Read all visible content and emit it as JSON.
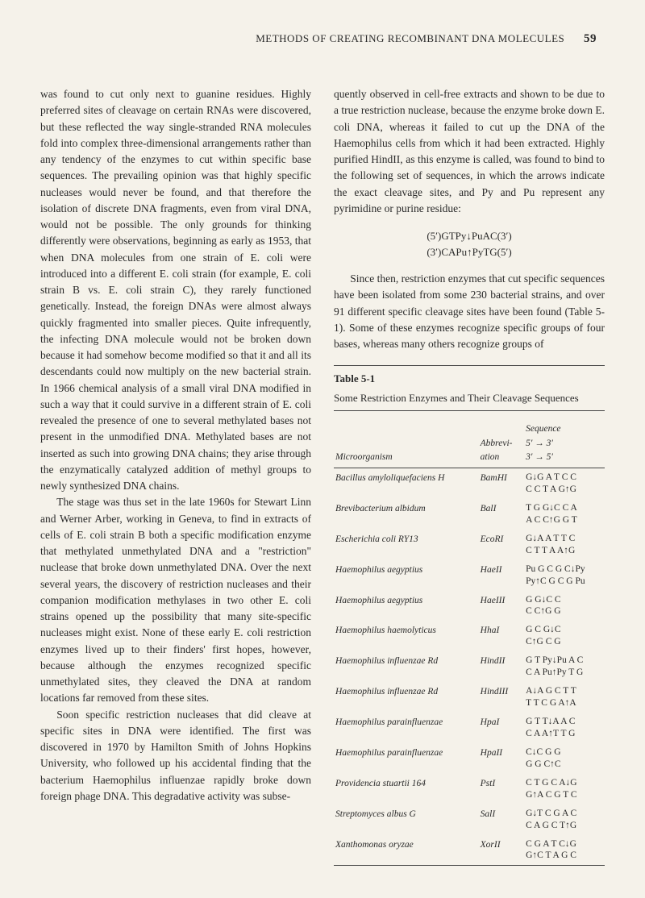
{
  "header": {
    "title": "METHODS OF CREATING RECOMBINANT DNA MOLECULES",
    "page": "59"
  },
  "left": {
    "p1": "was found to cut only next to guanine residues. Highly preferred sites of cleavage on certain RNAs were discovered, but these reflected the way single-stranded RNA molecules fold into complex three-dimensional arrangements rather than any tendency of the enzymes to cut within specific base sequences. The prevailing opinion was that highly specific nucleases would never be found, and that therefore the isolation of discrete DNA fragments, even from viral DNA, would not be possible. The only grounds for thinking differently were observations, beginning as early as 1953, that when DNA molecules from one strain of E. coli were introduced into a different E. coli strain (for example, E. coli strain B vs. E. coli strain C), they rarely functioned genetically. Instead, the foreign DNAs were almost always quickly fragmented into smaller pieces. Quite infrequently, the infecting DNA molecule would not be broken down because it had somehow become modified so that it and all its descendants could now multiply on the new bacterial strain. In 1966 chemical analysis of a small viral DNA modified in such a way that it could survive in a different strain of E. coli revealed the presence of one to several methylated bases not present in the unmodified DNA. Methylated bases are not inserted as such into growing DNA chains; they arise through the enzymatically catalyzed addition of methyl groups to newly synthesized DNA chains.",
    "p2": "The stage was thus set in the late 1960s for Stewart Linn and Werner Arber, working in Geneva, to find in extracts of cells of E. coli strain B both a specific modification enzyme that methylated unmethylated DNA and a \"restriction\" nuclease that broke down unmethylated DNA. Over the next several years, the discovery of restriction nucleases and their companion modification methylases in two other E. coli strains opened up the possibility that many site-specific nucleases might exist. None of these early E. coli restriction enzymes lived up to their finders' first hopes, however, because although the enzymes recognized specific unmethylated sites, they cleaved the DNA at random locations far removed from these sites.",
    "p3": "Soon specific restriction nucleases that did cleave at specific sites in DNA were identified. The first was discovered in 1970 by Hamilton Smith of Johns Hopkins University, who followed up his accidental finding that the bacterium Haemophilus influenzae rapidly broke down foreign phage DNA. This degradative activity was subse-"
  },
  "right": {
    "p1": "quently observed in cell-free extracts and shown to be due to a true restriction nuclease, because the enzyme broke down E. coli DNA, whereas it failed to cut up the DNA of the Haemophilus cells from which it had been extracted. Highly purified HindII, as this enzyme is called, was found to bind to the following set of sequences, in which the arrows indicate the exact cleavage sites, and Py and Pu represent any pyrimidine or purine residue:",
    "formula1": "(5′)GTPy↓PuAC(3′)",
    "formula2": "(3′)CAPu↑PyTG(5′)",
    "p2": "Since then, restriction enzymes that cut specific sequences have been isolated from some 230 bacterial strains, and over 91 different specific cleavage sites have been found (Table 5-1). Some of these enzymes recognize specific groups of four bases, whereas many others recognize groups of"
  },
  "table": {
    "label": "Table 5-1",
    "caption": "Some Restriction Enzymes and Their Cleavage Sequences",
    "headers": {
      "org": "Microorganism",
      "abbr": "Abbrevi-\nation",
      "seq": "Sequence\n5′ → 3′\n3′ → 5′"
    },
    "rows": [
      {
        "org": "Bacillus amyloliquefaciens H",
        "abbr": "BamHI",
        "seq": "G↓G A T C C\nC C T A G↑G"
      },
      {
        "org": "Brevibacterium albidum",
        "abbr": "BalI",
        "seq": "T G G↓C C A\nA C C↑G G T"
      },
      {
        "org": "Escherichia coli RY13",
        "abbr": "EcoRI",
        "seq": "G↓A A T T C\nC T T A A↑G"
      },
      {
        "org": "Haemophilus aegyptius",
        "abbr": "HaeII",
        "seq": "Pu G C G C↓Py\nPy↑C G C G Pu"
      },
      {
        "org": "Haemophilus aegyptius",
        "abbr": "HaeIII",
        "seq": "G G↓C C\nC C↑G G"
      },
      {
        "org": "Haemophilus haemolyticus",
        "abbr": "HhaI",
        "seq": "G C G↓C\nC↑G C G"
      },
      {
        "org": "Haemophilus influenzae Rd",
        "abbr": "HindII",
        "seq": "G T Py↓Pu A C\nC A Pu↑Py T G"
      },
      {
        "org": "Haemophilus influenzae Rd",
        "abbr": "HindIII",
        "seq": "A↓A G C T T\nT T C G A↑A"
      },
      {
        "org": "Haemophilus parainfluenzae",
        "abbr": "HpaI",
        "seq": "G T T↓A A C\nC A A↑T T G"
      },
      {
        "org": "Haemophilus parainfluenzae",
        "abbr": "HpaII",
        "seq": "C↓C G G\nG G C↑C"
      },
      {
        "org": "Providencia stuartii 164",
        "abbr": "PstI",
        "seq": "C T G C A↓G\nG↑A C G T C"
      },
      {
        "org": "Streptomyces albus G",
        "abbr": "SalI",
        "seq": "G↓T C G A C\nC A G C T↑G"
      },
      {
        "org": "Xanthomonas oryzae",
        "abbr": "XorII",
        "seq": "C G A T C↓G\nG↑C T A G C"
      }
    ]
  }
}
